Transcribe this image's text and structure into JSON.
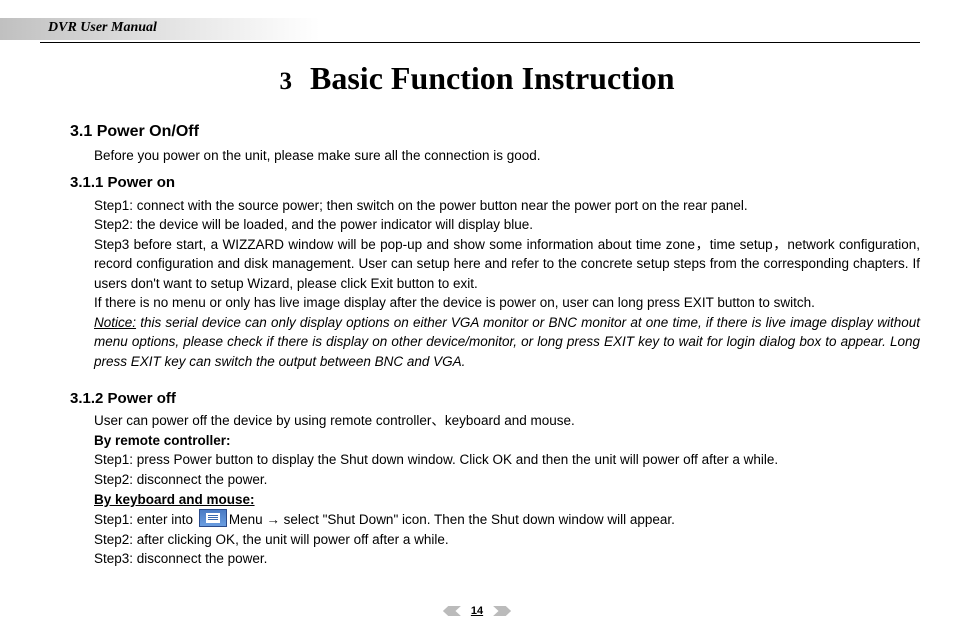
{
  "header": {
    "title": "DVR User Manual"
  },
  "chapter": {
    "number": "3",
    "title": "Basic Function Instruction"
  },
  "section1": {
    "heading": "3.1  Power On/Off",
    "intro": "Before you power on the unit, please make sure all the connection is good."
  },
  "section1_1": {
    "heading": "3.1.1  Power on",
    "step1": "Step1: connect with the source power; then switch on the power button near the power port on the rear panel.",
    "step2": "Step2: the device will be loaded, and the power indicator will display blue.",
    "step3": "Step3 before start, a WIZZARD window will be pop-up and show some information about time zone，time setup，network configuration, record configuration and disk management. User can setup here and refer to the concrete setup steps from the corresponding chapters. If users don't want to setup Wizard, please click Exit button to exit.",
    "note_line": "If there is no menu or only has live image display after the device is power on, user can long press EXIT button to switch.",
    "notice_label": "Notice:",
    "notice_body": " this serial device can only display options on either VGA monitor or BNC monitor at one time, if there is live image display without menu options, please check if there is display on other device/monitor, or long press EXIT key to wait for login dialog box to appear. Long press EXIT key can switch the output between BNC and VGA."
  },
  "section1_2": {
    "heading": "3.1.2  Power off",
    "intro": "User can power off the device by using remote controller、keyboard and mouse.",
    "by_remote": "By remote controller:",
    "r_step1": "Step1: press Power button to display the Shut down window. Click OK and then the unit will power off after a while.",
    "r_step2": "Step2: disconnect the power.",
    "by_km": "By keyboard and mouse:",
    "k_step1_a": "Step1: enter into ",
    "k_step1_b": "Menu → select \"Shut Down\" icon. Then the Shut down window will appear.",
    "k_step2": "Step2: after clicking OK, the unit will power off after a while.",
    "k_step3": "Step3: disconnect the power."
  },
  "footer": {
    "page": "14"
  }
}
